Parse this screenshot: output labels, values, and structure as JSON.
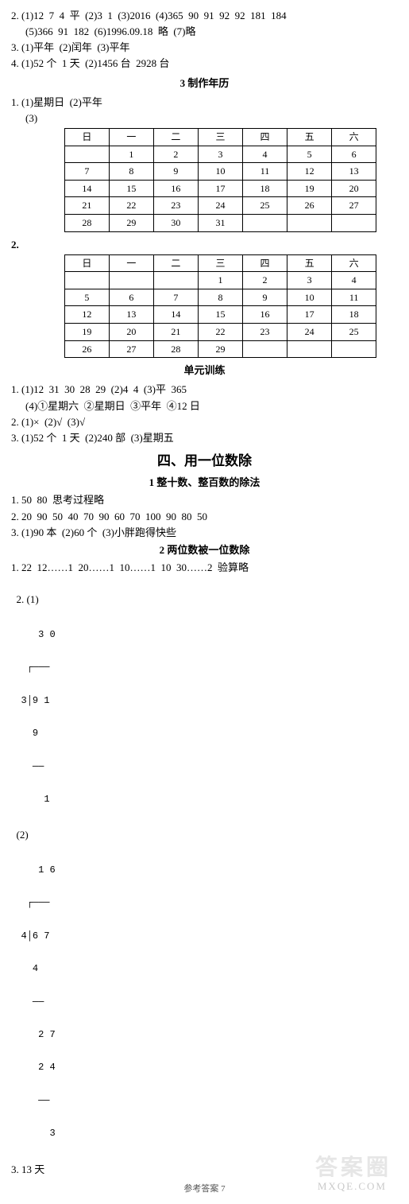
{
  "top": {
    "q2_l1": "2. (1)12  7  4  平  (2)3  1  (3)2016  (4)365  90  91  92  92  181  184",
    "q2_l2": "(5)366  91  182  (6)1996.09.18  略  (7)略",
    "q3": "3. (1)平年  (2)闰年  (3)平年",
    "q4": "4. (1)52 个  1 天  (2)1456 台  2928 台"
  },
  "sec3_title": "3  制作年历",
  "sec3_q1": "1. (1)星期日  (2)平年",
  "sec3_q1_sub": "(3)",
  "cal1": {
    "head": [
      "日",
      "一",
      "二",
      "三",
      "四",
      "五",
      "六"
    ],
    "rows": [
      [
        "",
        "1",
        "2",
        "3",
        "4",
        "5",
        "6"
      ],
      [
        "7",
        "8",
        "9",
        "10",
        "11",
        "12",
        "13"
      ],
      [
        "14",
        "15",
        "16",
        "17",
        "18",
        "19",
        "20"
      ],
      [
        "21",
        "22",
        "23",
        "24",
        "25",
        "26",
        "27"
      ],
      [
        "28",
        "29",
        "30",
        "31",
        "",
        "",
        ""
      ]
    ]
  },
  "sec3_q2_label": "2.",
  "cal2": {
    "head": [
      "日",
      "一",
      "二",
      "三",
      "四",
      "五",
      "六"
    ],
    "rows": [
      [
        "",
        "",
        "",
        "1",
        "2",
        "3",
        "4"
      ],
      [
        "5",
        "6",
        "7",
        "8",
        "9",
        "10",
        "11"
      ],
      [
        "12",
        "13",
        "14",
        "15",
        "16",
        "17",
        "18"
      ],
      [
        "19",
        "20",
        "21",
        "22",
        "23",
        "24",
        "25"
      ],
      [
        "26",
        "27",
        "28",
        "29",
        "",
        "",
        ""
      ]
    ]
  },
  "unit_title": "单元训练",
  "unit": {
    "q1_l1": "1. (1)12  31  30  28  29  (2)4  4  (3)平  365",
    "q1_l2": "(4)①星期六  ②星期日  ③平年  ④12 日",
    "q2": "2. (1)×  (2)√  (3)√",
    "q3": "3. (1)52 个  1 天  (2)240 部  (3)星期五"
  },
  "chapter_title": "四、用一位数除",
  "sub1_title": "1  整十数、整百数的除法",
  "sub1": {
    "q1": "1. 50  80  思考过程略",
    "q2": "2. 20  90  50  40  70  90  60  70  100  90  80  50",
    "q3": "3. (1)90 本  (2)60 个  (3)小胖跑得快些"
  },
  "sub2_title": "2  两位数被一位数除",
  "sub2": {
    "q1": "1. 22  12……1  20……1  10……1  10  30……2  验算略",
    "q2_label": "2. (1)",
    "q2_label2": "(2)",
    "div1": {
      "l0": "   3 0",
      "l1": " ┌───",
      "l2": "3│9 1",
      "l3": "  9",
      "l4": "  ──",
      "l5": "    1"
    },
    "div2": {
      "l0": "   1 6",
      "l1": " ┌───",
      "l2": "4│6 7",
      "l3": "  4",
      "l4": "  ──",
      "l5": "   2 7",
      "l6": "   2 4",
      "l7": "   ──",
      "l8": "     3"
    },
    "q3": "3. 13 天"
  },
  "footer": "参考答案    7",
  "wm1": "答案圈",
  "wm2": "MXQE.COM"
}
